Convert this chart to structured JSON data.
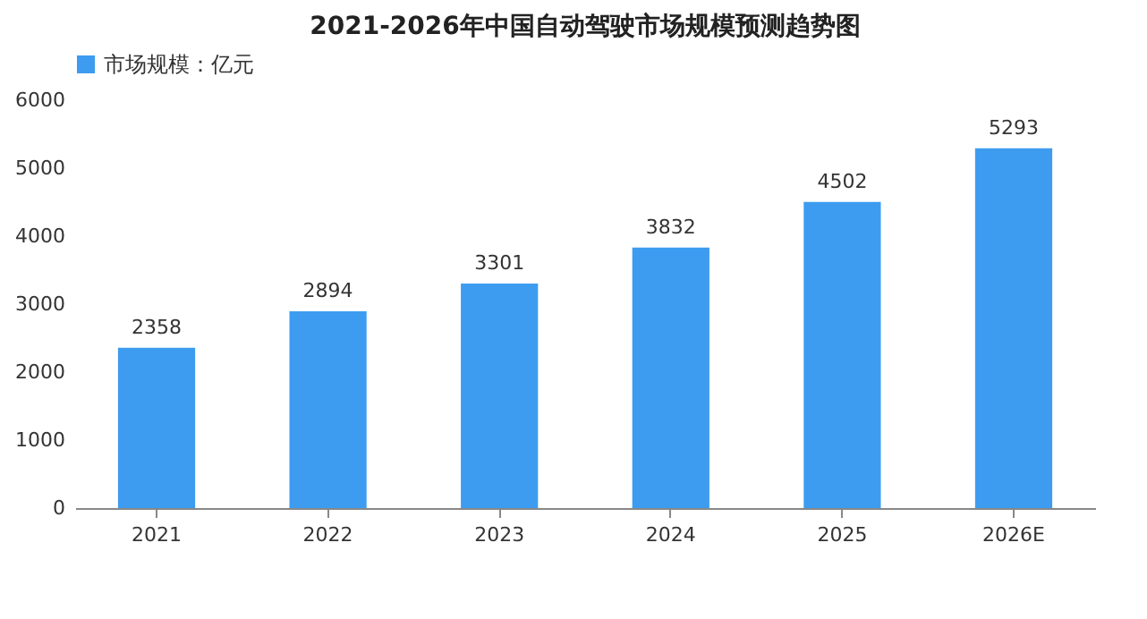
{
  "chart_data": {
    "type": "bar",
    "title": "2021-2026年中国自动驾驶市场规模预测趋势图",
    "categories": [
      "2021",
      "2022",
      "2023",
      "2024",
      "2025",
      "2026E"
    ],
    "series": [
      {
        "name": "市场规模：亿元",
        "color": "#3d9cf0",
        "values": [
          2358,
          2894,
          3301,
          3832,
          4502,
          5293
        ]
      }
    ],
    "ylim": [
      0,
      6000
    ],
    "yticks": [
      0,
      1000,
      2000,
      3000,
      4000,
      5000,
      6000
    ],
    "grid": false,
    "legend": "top",
    "data_labels": true
  }
}
